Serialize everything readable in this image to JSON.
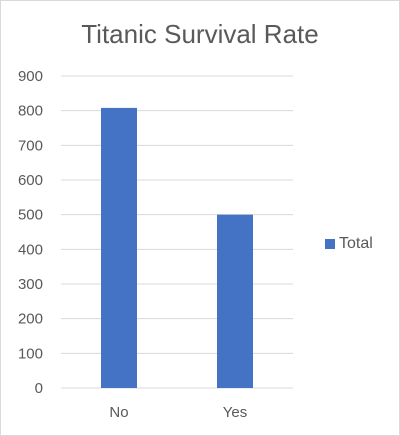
{
  "chart_data": {
    "type": "bar",
    "title": "Titanic Survival Rate",
    "categories": [
      "No",
      "Yes"
    ],
    "series": [
      {
        "name": "Total",
        "values": [
          808,
          500
        ],
        "color": "#4472c4"
      }
    ],
    "ylim": [
      0,
      900
    ],
    "yticks": [
      0,
      100,
      200,
      300,
      400,
      500,
      600,
      700,
      800,
      900
    ],
    "grid": true,
    "legend": "right"
  }
}
